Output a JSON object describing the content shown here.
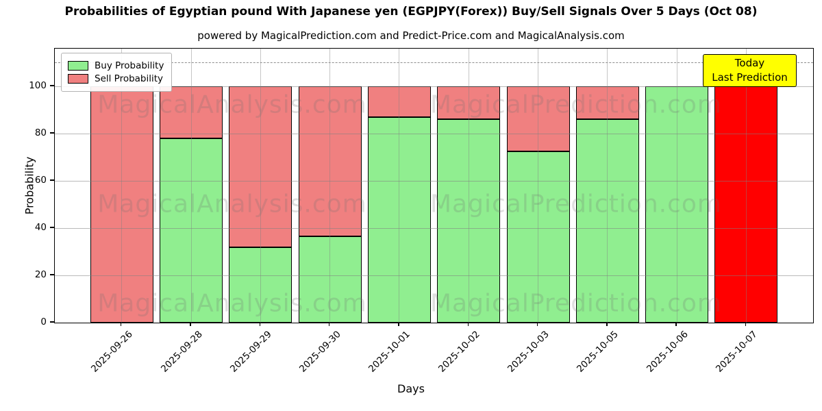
{
  "title": "Probabilities of Egyptian pound With Japanese yen (EGPJPY(Forex)) Buy/Sell Signals Over 5 Days (Oct 08)",
  "subtitle": "powered by MagicalPrediction.com and Predict-Price.com and MagicalAnalysis.com",
  "legend": {
    "items": [
      {
        "label": "Buy Probability",
        "color": "#90ee90"
      },
      {
        "label": "Sell Probability",
        "color": "#f08080"
      }
    ]
  },
  "annotation": {
    "line1": "Today",
    "line2": "Last Prediction",
    "bg_color": "#ffff00"
  },
  "axes": {
    "x_label": "Days",
    "y_label": "Probability",
    "y_ticks": [
      0,
      20,
      40,
      60,
      80,
      100
    ]
  },
  "watermarks": [
    "MagicalAnalysis.com",
    "MagicalPrediction.com"
  ],
  "chart_data": {
    "type": "bar",
    "stacked": true,
    "title": "Probabilities of Egyptian pound With Japanese yen (EGPJPY(Forex)) Buy/Sell Signals Over 5 Days (Oct 08)",
    "xlabel": "Days",
    "ylabel": "Probability",
    "ylim": [
      0,
      116
    ],
    "grid": true,
    "legend_position": "upper left",
    "dashed_threshold_y": 110,
    "categories": [
      "2025-09-26",
      "2025-09-28",
      "2025-09-29",
      "2025-09-30",
      "2025-10-01",
      "2025-10-02",
      "2025-10-03",
      "2025-10-05",
      "2025-10-06",
      "2025-10-07"
    ],
    "series": [
      {
        "name": "Buy Probability",
        "color": "#90ee90",
        "values": [
          0,
          78,
          32,
          36.5,
          87,
          86,
          72.5,
          86,
          100,
          0
        ]
      },
      {
        "name": "Sell Probability",
        "color": "#f08080",
        "values": [
          100,
          22,
          68,
          63.5,
          13,
          14,
          27.5,
          14,
          0,
          100
        ]
      }
    ],
    "last_bar_sell_color": "#ff0000",
    "last_bar_note": "Today / Last Prediction"
  }
}
